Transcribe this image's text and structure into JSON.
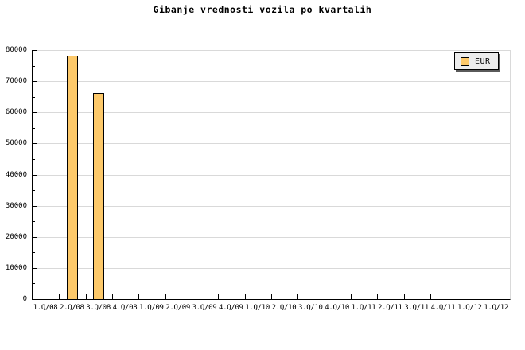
{
  "title": "Gibanje vrednosti vozila po kvartalih",
  "legend": {
    "label": "EUR"
  },
  "colors": {
    "bar_fill": "#FDC96A",
    "grid": "#D9D9D9",
    "axis": "#000000",
    "legend_bg": "#ECECEC"
  },
  "chart_data": {
    "type": "bar",
    "title": "Gibanje vrednosti vozila po kvartalih",
    "categories": [
      "1.Q/08",
      "2.Q/08",
      "3.Q/08",
      "4.Q/08",
      "1.Q/09",
      "2.Q/09",
      "3.Q/09",
      "4.Q/09",
      "1.Q/10",
      "2.Q/10",
      "3.Q/10",
      "4.Q/10",
      "1.Q/11",
      "2.Q/11",
      "3.Q/11",
      "4.Q/11",
      "1.Q/12",
      "1.Q/12"
    ],
    "series": [
      {
        "name": "EUR",
        "values": [
          null,
          78000,
          66000,
          null,
          null,
          null,
          null,
          null,
          null,
          null,
          null,
          null,
          null,
          null,
          null,
          null,
          null,
          null
        ]
      }
    ],
    "xlabel": "",
    "ylabel": "",
    "ylim": [
      0,
      80000
    ],
    "ytick_interval": 10000,
    "yminor_tick_interval": 5000,
    "ytick_labels": [
      "0",
      "10000",
      "20000",
      "30000",
      "40000",
      "50000",
      "60000",
      "70000",
      "80000"
    ],
    "grid": true,
    "legend_position": "top-right",
    "bar_color": "#FDC96A",
    "grid_color": "#D9D9D9"
  }
}
